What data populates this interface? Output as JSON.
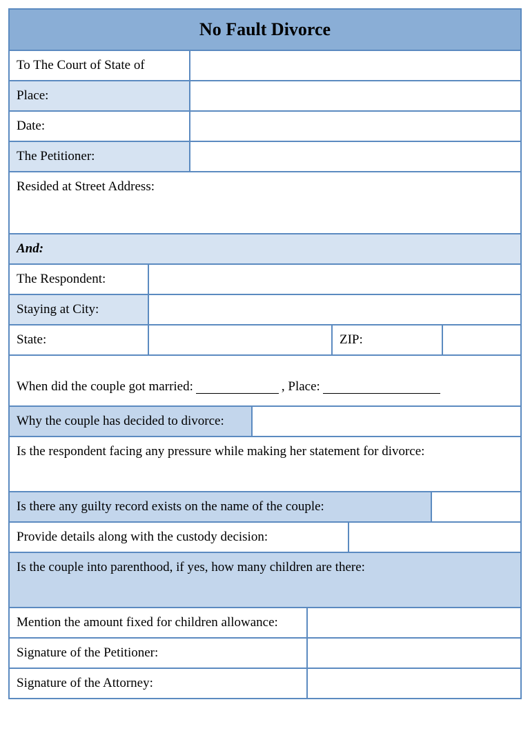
{
  "colors": {
    "border": "#5b8ac0",
    "header_bg": "#8aaed6",
    "shade_light": "#d6e3f2",
    "shade_med": "#c3d6ec",
    "background": "#ffffff",
    "text": "#000000"
  },
  "typography": {
    "font_family": "Times New Roman",
    "title_fontsize_pt": 20,
    "body_fontsize_pt": 14
  },
  "title": "No Fault Divorce",
  "petitioner_section": {
    "court_of_state": "To The Court of State of",
    "place": "Place:",
    "date": "Date:",
    "petitioner": "The Petitioner:",
    "resided_at": "Resided at Street Address:"
  },
  "and_label": "And:",
  "respondent_section": {
    "respondent": "The Respondent:",
    "staying_city": "Staying at City:",
    "state": "State:",
    "zip": "ZIP:"
  },
  "questions": {
    "married_when": "When did the couple got married: ",
    "married_place": ", Place: ",
    "why_divorce": "Why the couple has decided to divorce:",
    "pressure": "Is the respondent facing any pressure while making her statement for divorce:",
    "guilty_record": "Is there any guilty record exists on the name of the couple:",
    "custody": "Provide details along with the custody decision:",
    "parenthood": "Is the couple into parenthood, if yes, how many children are there:",
    "allowance": "Mention the amount fixed for children allowance:",
    "sig_petitioner": "Signature of the Petitioner:",
    "sig_attorney": "Signature of the Attorney:"
  }
}
